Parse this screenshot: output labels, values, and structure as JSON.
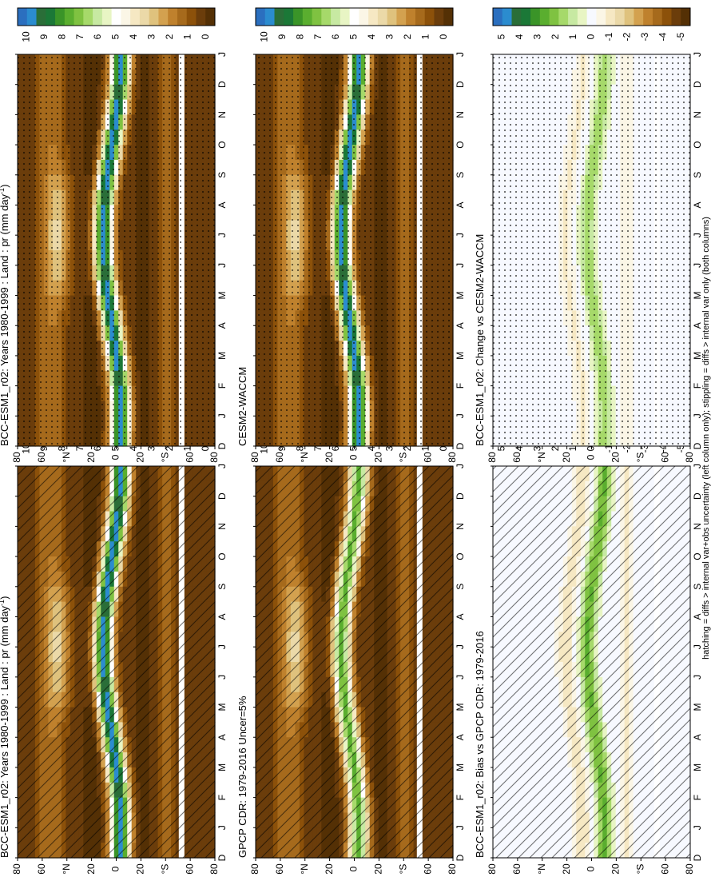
{
  "figure": {
    "footnote": "hatching = diffs > internal var+obs uncertainty (left column only); stippling = diffs > internal var only (both columns)"
  },
  "chart_data": [
    {
      "type": "heatmap",
      "title": "BCC-ESM1_r02: Years 1980-1999 : Land : pr (mm day",
      "title_sup": "-1",
      "title_tail": ")",
      "months": [
        "D",
        "J",
        "F",
        "M",
        "A",
        "M",
        "J",
        "J",
        "A",
        "S",
        "O",
        "N",
        "D",
        "J"
      ],
      "lat_ticks": [
        "80",
        "60",
        "°N",
        "20",
        "0",
        "20",
        "°S",
        "60",
        "80"
      ],
      "lat_range": [
        -90,
        90
      ],
      "colorbar": {
        "labels": [
          "0",
          "1",
          "2",
          "3",
          "4",
          "5",
          "6",
          "7",
          "8",
          "9",
          "10"
        ],
        "range": [
          0,
          11
        ]
      },
      "scheme": "field",
      "peak_band": "blue",
      "overlay": "hatch"
    },
    {
      "type": "heatmap",
      "title": "BCC-ESM1_r02: Years 1980-1999 : Land : pr (mm day",
      "title_sup": "-1",
      "title_tail": ")",
      "months": [
        "D",
        "J",
        "F",
        "M",
        "A",
        "M",
        "J",
        "J",
        "A",
        "S",
        "O",
        "N",
        "D",
        "J"
      ],
      "lat_ticks": [
        "80",
        "60",
        "°N",
        "20",
        "0",
        "20",
        "°S",
        "60",
        "80"
      ],
      "lat_range": [
        -90,
        90
      ],
      "colorbar": {
        "labels": [
          "0",
          "1",
          "2",
          "3",
          "4",
          "5",
          "6",
          "7",
          "8",
          "9",
          "10"
        ],
        "range": [
          0,
          11
        ]
      },
      "scheme": "field",
      "peak_band": "blue",
      "overlay": "stipple"
    },
    {
      "type": "heatmap",
      "title": "GPCP CDR: 1979-2016 Uncer=5%",
      "months": [
        "D",
        "J",
        "F",
        "M",
        "A",
        "M",
        "J",
        "J",
        "A",
        "S",
        "O",
        "N",
        "D",
        "J"
      ],
      "lat_ticks": [
        "80",
        "60",
        "°N",
        "20",
        "0",
        "20",
        "°S",
        "60",
        "80"
      ],
      "lat_range": [
        -90,
        90
      ],
      "colorbar": {
        "labels": [
          "0",
          "1",
          "2",
          "3",
          "4",
          "5",
          "6",
          "7",
          "8",
          "9",
          "10"
        ],
        "range": [
          0,
          11
        ]
      },
      "scheme": "field",
      "peak_band": "green",
      "overlay": "hatch"
    },
    {
      "type": "heatmap",
      "title": "CESM2-WACCM",
      "months": [
        "D",
        "J",
        "F",
        "M",
        "A",
        "M",
        "J",
        "J",
        "A",
        "S",
        "O",
        "N",
        "D",
        "J"
      ],
      "lat_ticks": [
        "80",
        "60",
        "°N",
        "20",
        "0",
        "20",
        "°S",
        "60",
        "80"
      ],
      "lat_range": [
        -90,
        90
      ],
      "colorbar": {
        "labels": [
          "0",
          "1",
          "2",
          "3",
          "4",
          "5",
          "6",
          "7",
          "8",
          "9",
          "10"
        ],
        "range": [
          0,
          11
        ]
      },
      "scheme": "field",
      "peak_band": "blue",
      "overlay": "stipple"
    },
    {
      "type": "heatmap",
      "title": "BCC-ESM1_r02: Bias vs GPCP CDR: 1979-2016",
      "months": [
        "D",
        "J",
        "F",
        "M",
        "A",
        "M",
        "J",
        "J",
        "A",
        "S",
        "O",
        "N",
        "D",
        "J"
      ],
      "lat_ticks": [
        "80",
        "60",
        "°N",
        "20",
        "0",
        "20",
        "°S",
        "60",
        "80"
      ],
      "lat_range": [
        -90,
        90
      ],
      "colorbar": {
        "labels": [
          "-5",
          "-4",
          "-3",
          "-2",
          "-1",
          "0",
          "1",
          "2",
          "3",
          "4",
          "5"
        ],
        "range": [
          -5.5,
          5.5
        ]
      },
      "scheme": "diff",
      "overlay": "hatch"
    },
    {
      "type": "heatmap",
      "title": "BCC-ESM1_r02: Change vs CESM2-WACCM",
      "months": [
        "D",
        "J",
        "F",
        "M",
        "A",
        "M",
        "J",
        "J",
        "A",
        "S",
        "O",
        "N",
        "D",
        "J"
      ],
      "lat_ticks": [
        "80",
        "60",
        "°N",
        "20",
        "0",
        "20",
        "°S",
        "60",
        "80"
      ],
      "lat_range": [
        -90,
        90
      ],
      "colorbar": {
        "labels": [
          "-5",
          "-4",
          "-3",
          "-2",
          "-1",
          "0",
          "1",
          "2",
          "3",
          "4",
          "5"
        ],
        "range": [
          -5.5,
          5.5
        ]
      },
      "scheme": "diff",
      "overlay": "stipple"
    }
  ],
  "palette": {
    "field_colors": [
      "#543005",
      "#6b3d0b",
      "#8c510a",
      "#a66a1c",
      "#bf812d",
      "#d3a14f",
      "#dfc27d",
      "#ebd9a8",
      "#f6e8c3",
      "#fbf6e6",
      "#ffffff",
      "#e8f5c4",
      "#c7e9a2",
      "#a6d96a",
      "#7fc241",
      "#5aae2f",
      "#3a9428",
      "#1b7837",
      "#2a6e38",
      "#2b8ccf",
      "#2b6fbf"
    ],
    "diff_colors": [
      "#543005",
      "#6b3d0b",
      "#8c510a",
      "#a66a1c",
      "#bf812d",
      "#d3a14f",
      "#dfc27d",
      "#ebd9a8",
      "#f6e8c3",
      "#fbf6e6",
      "#f7f9ff",
      "#e8f5c4",
      "#c7e9a2",
      "#a6d96a",
      "#7fc241",
      "#5aae2f",
      "#3a9428",
      "#1b7837",
      "#2a6e38",
      "#2b8ccf",
      "#2b6fbf"
    ]
  }
}
